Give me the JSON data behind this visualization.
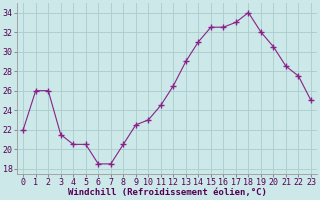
{
  "x": [
    0,
    1,
    2,
    3,
    4,
    5,
    6,
    7,
    8,
    9,
    10,
    11,
    12,
    13,
    14,
    15,
    16,
    17,
    18,
    19,
    20,
    21,
    22,
    23
  ],
  "y": [
    22,
    26,
    26,
    21.5,
    20.5,
    20.5,
    18.5,
    18.5,
    20.5,
    22.5,
    23,
    24.5,
    26.5,
    29,
    31,
    32.5,
    32.5,
    33,
    34,
    32,
    30.5,
    28.5,
    27.5,
    25
  ],
  "line_color": "#882288",
  "marker": "+",
  "marker_size": 4,
  "bg_color": "#cce8e8",
  "grid_color": "#aacccc",
  "xlabel": "Windchill (Refroidissement éolien,°C)",
  "ylim": [
    17.5,
    35
  ],
  "xlim": [
    -0.5,
    23.5
  ],
  "yticks": [
    18,
    20,
    22,
    24,
    26,
    28,
    30,
    32,
    34
  ],
  "xticks": [
    0,
    1,
    2,
    3,
    4,
    5,
    6,
    7,
    8,
    9,
    10,
    11,
    12,
    13,
    14,
    15,
    16,
    17,
    18,
    19,
    20,
    21,
    22,
    23
  ],
  "xlabel_fontsize": 6.5,
  "tick_fontsize": 6.0
}
